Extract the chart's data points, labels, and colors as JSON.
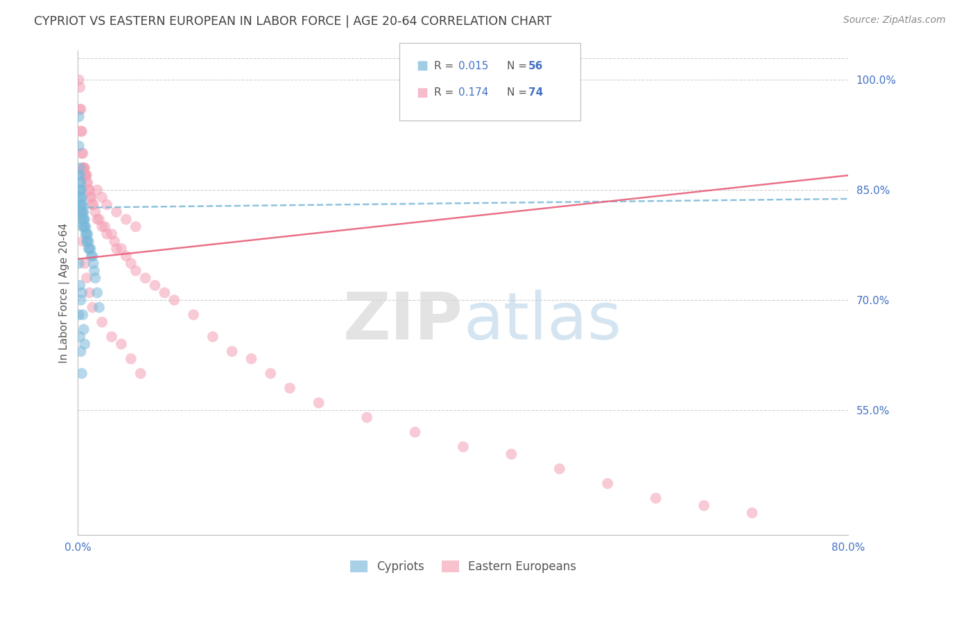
{
  "title": "CYPRIOT VS EASTERN EUROPEAN IN LABOR FORCE | AGE 20-64 CORRELATION CHART",
  "source": "Source: ZipAtlas.com",
  "ylabel": "In Labor Force | Age 20-64",
  "watermark_zip": "ZIP",
  "watermark_atlas": "atlas",
  "xmin": 0.0,
  "xmax": 0.8,
  "ymin": 0.38,
  "ymax": 1.04,
  "yticks": [
    0.55,
    0.7,
    0.85,
    1.0
  ],
  "ytick_labels": [
    "55.0%",
    "70.0%",
    "85.0%",
    "100.0%"
  ],
  "xtick_show": [
    0.0,
    0.8
  ],
  "xtick_labels_show": [
    "0.0%",
    "80.0%"
  ],
  "legend_R_blue": "R = 0.015",
  "legend_N_blue": "N = 56",
  "legend_R_pink": "R = 0.174",
  "legend_N_pink": "N = 74",
  "legend_label_blue": "Cypriots",
  "legend_label_pink": "Eastern Europeans",
  "blue_color": "#7ab8d9",
  "pink_color": "#f4a0b5",
  "blue_line_color": "#7ab8d9",
  "pink_line_color": "#e8607a",
  "axis_color": "#4472c4",
  "R_color": "#4472c4",
  "N_color": "#4472c4",
  "title_color": "#404040",
  "background_color": "#ffffff",
  "grid_color": "#d0d0d0",
  "blue_scatter_x": [
    0.001,
    0.001,
    0.001,
    0.002,
    0.002,
    0.002,
    0.002,
    0.002,
    0.002,
    0.003,
    0.003,
    0.003,
    0.003,
    0.003,
    0.003,
    0.004,
    0.004,
    0.004,
    0.004,
    0.005,
    0.005,
    0.005,
    0.005,
    0.006,
    0.006,
    0.006,
    0.007,
    0.007,
    0.008,
    0.008,
    0.009,
    0.009,
    0.01,
    0.01,
    0.011,
    0.011,
    0.012,
    0.013,
    0.014,
    0.015,
    0.016,
    0.017,
    0.018,
    0.02,
    0.022,
    0.001,
    0.001,
    0.002,
    0.002,
    0.003,
    0.003,
    0.004,
    0.004,
    0.005,
    0.006,
    0.007
  ],
  "blue_scatter_y": [
    0.95,
    0.91,
    0.87,
    0.88,
    0.87,
    0.86,
    0.85,
    0.84,
    0.83,
    0.86,
    0.85,
    0.85,
    0.84,
    0.83,
    0.82,
    0.84,
    0.83,
    0.82,
    0.81,
    0.83,
    0.82,
    0.81,
    0.8,
    0.82,
    0.81,
    0.8,
    0.81,
    0.8,
    0.8,
    0.79,
    0.79,
    0.78,
    0.79,
    0.78,
    0.78,
    0.77,
    0.77,
    0.77,
    0.76,
    0.76,
    0.75,
    0.74,
    0.73,
    0.71,
    0.69,
    0.75,
    0.68,
    0.72,
    0.65,
    0.7,
    0.63,
    0.71,
    0.6,
    0.68,
    0.66,
    0.64
  ],
  "pink_scatter_x": [
    0.001,
    0.002,
    0.002,
    0.003,
    0.003,
    0.004,
    0.004,
    0.005,
    0.005,
    0.006,
    0.006,
    0.007,
    0.007,
    0.008,
    0.008,
    0.009,
    0.009,
    0.01,
    0.011,
    0.012,
    0.013,
    0.014,
    0.015,
    0.016,
    0.018,
    0.02,
    0.022,
    0.025,
    0.028,
    0.03,
    0.035,
    0.038,
    0.04,
    0.045,
    0.05,
    0.055,
    0.06,
    0.07,
    0.08,
    0.09,
    0.1,
    0.12,
    0.14,
    0.16,
    0.18,
    0.2,
    0.22,
    0.25,
    0.3,
    0.35,
    0.4,
    0.45,
    0.5,
    0.55,
    0.6,
    0.65,
    0.7,
    0.003,
    0.005,
    0.007,
    0.009,
    0.012,
    0.015,
    0.02,
    0.025,
    0.03,
    0.04,
    0.05,
    0.06,
    0.025,
    0.035,
    0.045,
    0.055,
    0.065
  ],
  "pink_scatter_y": [
    1.0,
    0.99,
    0.96,
    0.96,
    0.93,
    0.93,
    0.9,
    0.9,
    0.88,
    0.88,
    0.88,
    0.88,
    0.87,
    0.87,
    0.87,
    0.87,
    0.86,
    0.86,
    0.85,
    0.85,
    0.84,
    0.84,
    0.83,
    0.83,
    0.82,
    0.81,
    0.81,
    0.8,
    0.8,
    0.79,
    0.79,
    0.78,
    0.77,
    0.77,
    0.76,
    0.75,
    0.74,
    0.73,
    0.72,
    0.71,
    0.7,
    0.68,
    0.65,
    0.63,
    0.62,
    0.6,
    0.58,
    0.56,
    0.54,
    0.52,
    0.5,
    0.49,
    0.47,
    0.45,
    0.43,
    0.42,
    0.41,
    0.82,
    0.78,
    0.75,
    0.73,
    0.71,
    0.69,
    0.85,
    0.84,
    0.83,
    0.82,
    0.81,
    0.8,
    0.67,
    0.65,
    0.64,
    0.62,
    0.6
  ],
  "blue_trend_x": [
    0.0,
    0.8
  ],
  "blue_trend_y": [
    0.826,
    0.838
  ],
  "pink_trend_x": [
    0.0,
    0.8
  ],
  "pink_trend_y": [
    0.756,
    0.87
  ]
}
